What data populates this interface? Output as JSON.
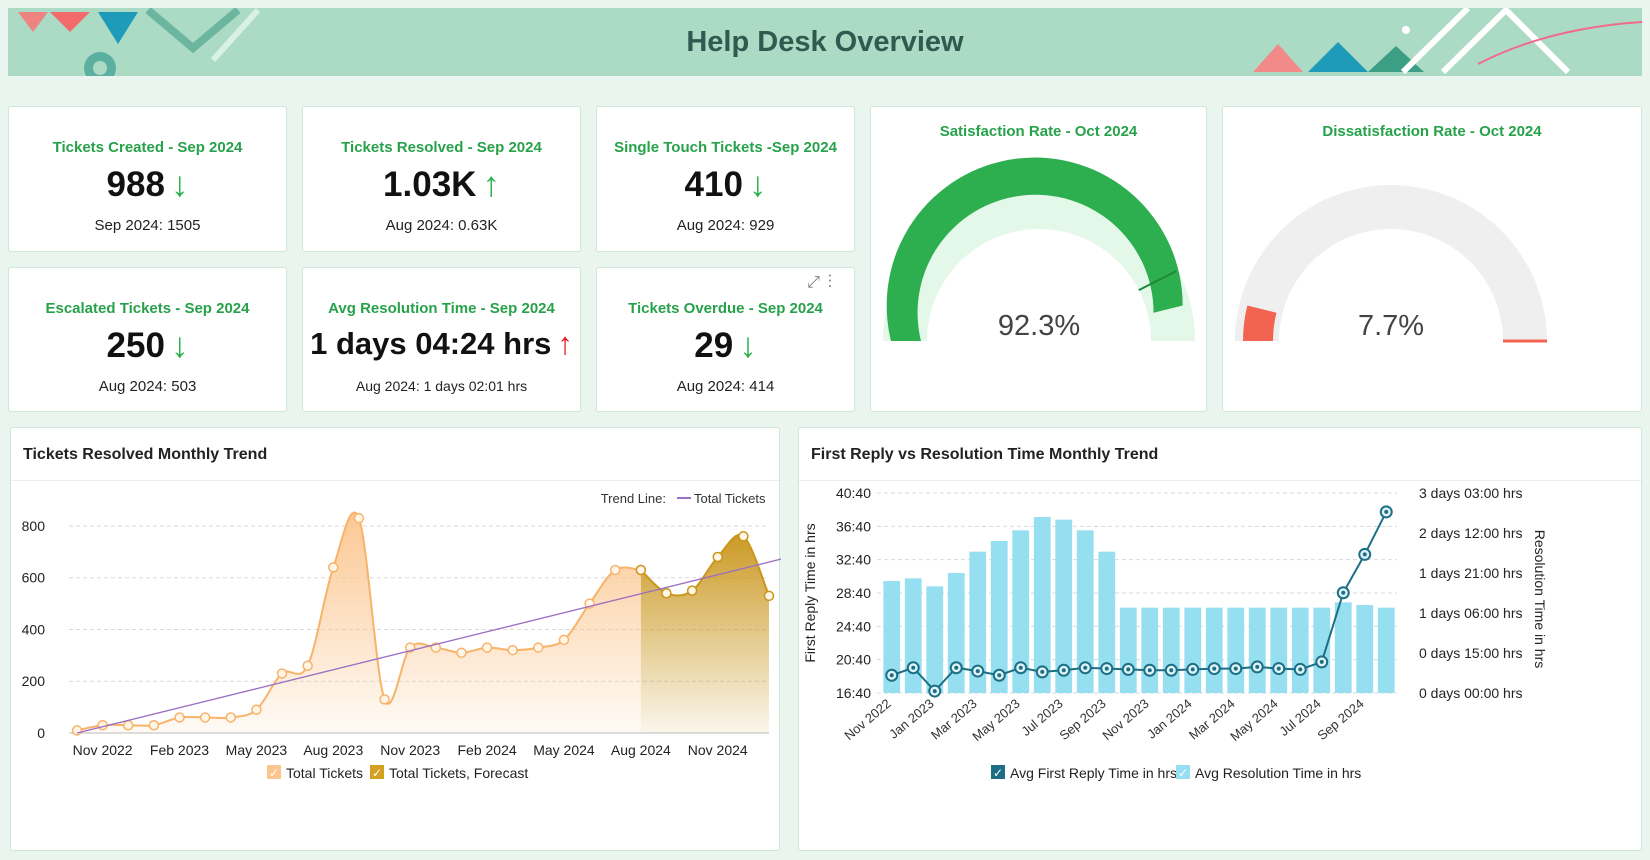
{
  "header": {
    "title": "Help Desk Overview"
  },
  "kpis": [
    {
      "title": "Tickets Created - Sep 2024",
      "value": "988",
      "arrow": "↓",
      "trend": "down",
      "compare": "Sep 2024: 1505"
    },
    {
      "title": "Tickets Resolved - Sep 2024",
      "value": "1.03K",
      "arrow": "↑",
      "trend": "up-green",
      "compare": "Aug 2024: 0.63K"
    },
    {
      "title": "Single Touch Tickets -Sep 2024",
      "value": "410",
      "arrow": "↓",
      "trend": "down",
      "compare": "Aug 2024: 929"
    },
    {
      "title": "Escalated Tickets - Sep 2024",
      "value": "250",
      "arrow": "↓",
      "trend": "down",
      "compare": "Aug 2024: 503"
    },
    {
      "title": "Avg Resolution Time - Sep 2024",
      "value": "1 days 04:24 hrs",
      "arrow": "↑",
      "trend": "up-red",
      "compare": "Aug 2024: 1 days 02:01 hrs"
    },
    {
      "title": "Tickets Overdue - Sep 2024",
      "value": "29",
      "arrow": "↓",
      "trend": "down",
      "compare": "Aug 2024: 414"
    }
  ],
  "kpi_tools": {
    "expand_icon": "expand-icon",
    "menu_icon": "kebab-menu-icon",
    "expand_glyph": "⤢",
    "menu_glyph": "⋮"
  },
  "gauges": [
    {
      "title": "Satisfaction Rate - Oct 2024",
      "value_label": "92.3%",
      "value": 92.3,
      "target": 85,
      "color": "#2eaf4f",
      "track": "#e4f8ea"
    },
    {
      "title": "Dissatisfaction Rate - Oct 2024",
      "value_label": "7.7%",
      "value": 7.7,
      "target": 100,
      "color": "#f26350",
      "track": "#efefef"
    }
  ],
  "trend_chart": {
    "title": "Tickets Resolved Monthly Trend",
    "trend_line_label": "Trend Line:",
    "trend_line_series": "Total Tickets",
    "legend": [
      {
        "label": "Total Tickets",
        "color": "#fbc58d"
      },
      {
        "label": "Total Tickets, Forecast",
        "color": "#d4a021"
      }
    ],
    "y_ticks": [
      "0",
      "200",
      "400",
      "600",
      "800"
    ],
    "x_ticks": [
      "Nov 2022",
      "Feb 2023",
      "May 2023",
      "Aug 2023",
      "Nov 2023",
      "Feb 2024",
      "May 2024",
      "Aug 2024",
      "Nov 2024"
    ]
  },
  "combo_chart": {
    "title": "First Reply vs Resolution Time Monthly Trend",
    "y_left_label": "First Reply Time in hrs",
    "y_right_label": "Resolution Time in hrs",
    "y_left_ticks": [
      "16:40",
      "20:40",
      "24:40",
      "28:40",
      "32:40",
      "36:40",
      "40:40"
    ],
    "y_right_ticks": [
      "0 days 00:00 hrs",
      "0 days 15:00 hrs",
      "1 days 06:00 hrs",
      "1 days 21:00 hrs",
      "2 days 12:00 hrs",
      "3 days 03:00 hrs"
    ],
    "x_ticks": [
      "Nov 2022",
      "Jan 2023",
      "Mar 2023",
      "May 2023",
      "Jul 2023",
      "Sep 2023",
      "Nov 2023",
      "Jan 2024",
      "Mar 2024",
      "May 2024",
      "Jul 2024",
      "Sep 2024"
    ],
    "legend": [
      {
        "label": "Avg First Reply Time in hrs",
        "color": "#1d6f85"
      },
      {
        "label": "Avg Resolution Time in hrs",
        "color": "#95dff0"
      }
    ]
  },
  "chart_data": [
    {
      "type": "area",
      "title": "Tickets Resolved Monthly Trend",
      "x": [
        "Oct 2022",
        "Nov 2022",
        "Dec 2022",
        "Jan 2023",
        "Feb 2023",
        "Mar 2023",
        "Apr 2023",
        "May 2023",
        "Jun 2023",
        "Jul 2023",
        "Aug 2023",
        "Sep 2023",
        "Oct 2023",
        "Nov 2023",
        "Dec 2023",
        "Jan 2024",
        "Feb 2024",
        "Mar 2024",
        "Apr 2024",
        "May 2024",
        "Jun 2024",
        "Jul 2024",
        "Aug 2024",
        "Sep 2024",
        "Oct 2024",
        "Nov 2024",
        "Dec 2024",
        "Jan 2025"
      ],
      "series": [
        {
          "name": "Total Tickets",
          "values": [
            10,
            30,
            30,
            30,
            60,
            60,
            60,
            90,
            230,
            260,
            640,
            830,
            130,
            330,
            330,
            310,
            330,
            320,
            330,
            360,
            500,
            630,
            630,
            null,
            null,
            null,
            null,
            null
          ]
        },
        {
          "name": "Total Tickets, Forecast",
          "values": [
            null,
            null,
            null,
            null,
            null,
            null,
            null,
            null,
            null,
            null,
            null,
            null,
            null,
            null,
            null,
            null,
            null,
            null,
            null,
            null,
            null,
            null,
            630,
            540,
            550,
            680,
            760,
            530
          ]
        }
      ],
      "trend_line": {
        "name": "Total Tickets",
        "from": [
          0,
          0
        ],
        "to": [
          27.8,
          680
        ]
      },
      "ylim": [
        0,
        850
      ],
      "y_ticks": [
        0,
        200,
        400,
        600,
        800
      ]
    },
    {
      "type": "bar",
      "title": "First Reply vs Resolution Time Monthly Trend",
      "x": [
        "Nov 2022",
        "Dec 2022",
        "Jan 2023",
        "Feb 2023",
        "Mar 2023",
        "Apr 2023",
        "May 2023",
        "Jun 2023",
        "Jul 2023",
        "Aug 2023",
        "Sep 2023",
        "Oct 2023",
        "Nov 2023",
        "Dec 2023",
        "Jan 2024",
        "Feb 2024",
        "Mar 2024",
        "Apr 2024",
        "May 2024",
        "Jun 2024",
        "Jul 2024",
        "Aug 2024",
        "Sep 2024",
        "Oct 2024"
      ],
      "series": [
        {
          "name": "Avg Resolution Time in hrs",
          "axis": "right",
          "unit": "hours",
          "values": [
            42,
            43,
            40,
            45,
            53,
            57,
            61,
            66,
            65,
            61,
            53,
            32,
            32,
            32,
            32,
            32,
            32,
            32,
            32,
            32,
            32,
            34,
            33,
            32
          ]
        },
        {
          "name": "Avg First Reply Time in hrs",
          "axis": "left",
          "unit": "hh:mm",
          "values": [
            18.8,
            19.7,
            16.9,
            19.7,
            19.3,
            18.8,
            19.7,
            19.2,
            19.4,
            19.7,
            19.6,
            19.5,
            19.4,
            19.4,
            19.5,
            19.6,
            19.6,
            19.8,
            19.6,
            19.5,
            20.4,
            28.7,
            33.3,
            38.4
          ]
        }
      ],
      "ylim_left": [
        16.67,
        40.67
      ],
      "ylim_right": [
        0,
        75
      ]
    }
  ]
}
